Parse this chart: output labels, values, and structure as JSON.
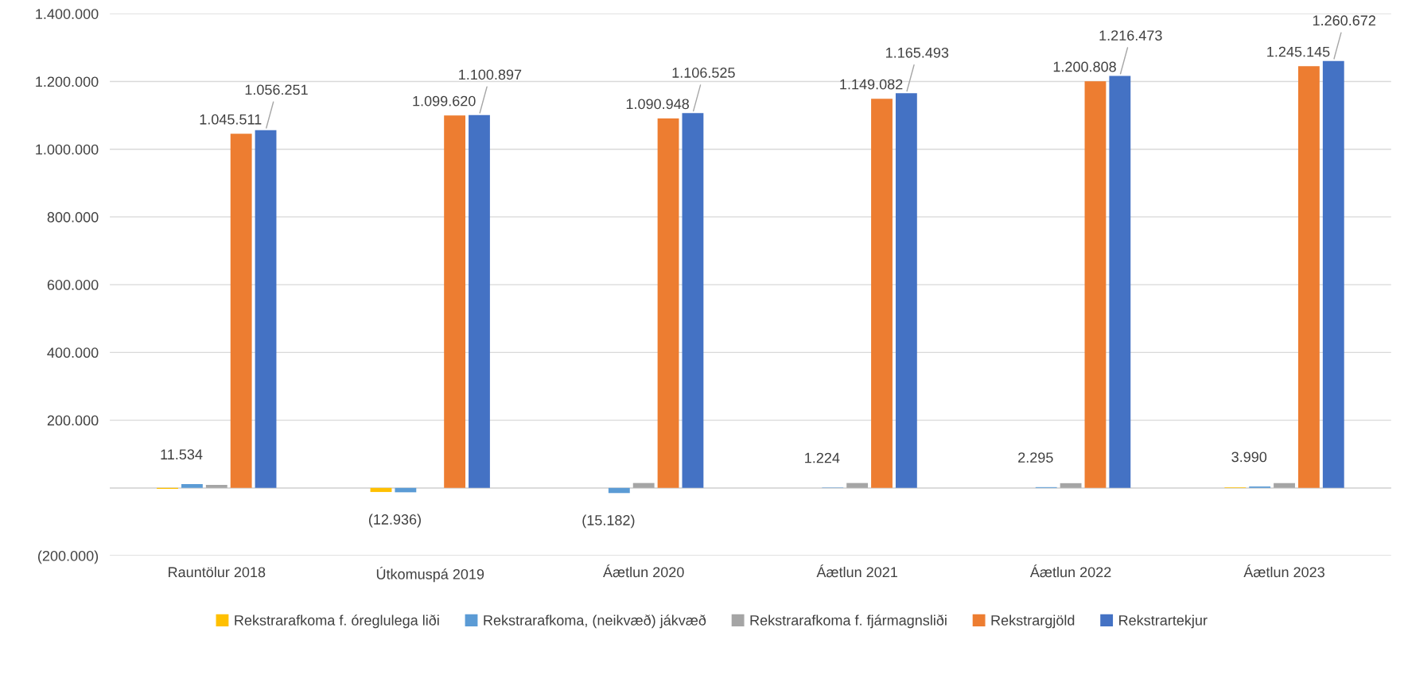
{
  "chart_data": {
    "type": "bar",
    "categories": [
      "Rauntölur 2018",
      "Útkomuspá 2019",
      "Áætlun 2020",
      "Áætlun 2021",
      "Áætlun 2022",
      "Áætlun 2023"
    ],
    "series": [
      {
        "name": "Rekstrarafkoma f. óreglulega liði",
        "color": "#ffc000",
        "values": [
          -3000,
          -12000,
          0,
          0,
          0,
          2000
        ],
        "value_labels": [
          null,
          null,
          null,
          null,
          null,
          null
        ]
      },
      {
        "name": "Rekstrarafkoma, (neikvæð) jákvæð",
        "color": "#5b9bd5",
        "values": [
          11534,
          -12936,
          -15182,
          1224,
          2295,
          3990
        ],
        "value_labels": [
          "11.534",
          "(12.936)",
          "(15.182)",
          "1.224",
          "2.295",
          "3.990"
        ]
      },
      {
        "name": "Rekstrarafkoma f. fjármagnsliði",
        "color": "#a5a5a5",
        "values": [
          9000,
          0,
          14500,
          14500,
          14000,
          14000
        ],
        "value_labels": [
          null,
          null,
          null,
          null,
          null,
          null
        ]
      },
      {
        "name": "Rekstrargjöld",
        "color": "#ed7d31",
        "values": [
          1045511,
          1099620,
          1090948,
          1149082,
          1200808,
          1245145
        ],
        "value_labels": [
          "1.045.511",
          "1.099.620",
          "1.090.948",
          "1.149.082",
          "1.200.808",
          "1.245.145"
        ]
      },
      {
        "name": "Rekstrartekjur",
        "color": "#4472c4",
        "values": [
          1056251,
          1100897,
          1106525,
          1165493,
          1216473,
          1260672
        ],
        "value_labels": [
          "1.056.251",
          "1.100.897",
          "1.106.525",
          "1.165.493",
          "1.216.473",
          "1.260.672"
        ]
      }
    ],
    "ylim": [
      -200000,
      1400000
    ],
    "yticks": [
      {
        "value": -200000,
        "label": "(200.000)"
      },
      {
        "value": 0,
        "label": null
      },
      {
        "value": 200000,
        "label": "200.000"
      },
      {
        "value": 400000,
        "label": "400.000"
      },
      {
        "value": 600000,
        "label": "600.000"
      },
      {
        "value": 800000,
        "label": "800.000"
      },
      {
        "value": 1000000,
        "label": "1.000.000"
      },
      {
        "value": 1200000,
        "label": "1.200.000"
      },
      {
        "value": 1400000,
        "label": "1.400.000"
      }
    ],
    "grid": "y",
    "legend": "bottom"
  }
}
